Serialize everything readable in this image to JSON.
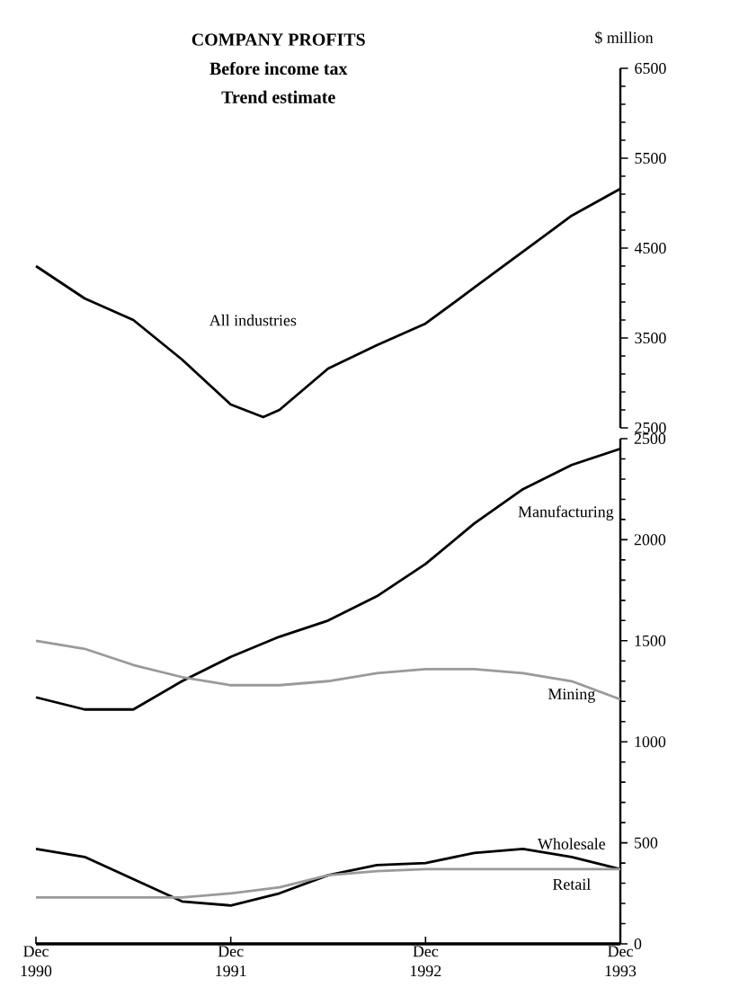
{
  "chart_data": [
    {
      "type": "line",
      "title": "COMPANY PROFITS",
      "subtitle": "Before income tax",
      "annotations": [
        "Trend estimate"
      ],
      "ylabel": "$ million",
      "x": [
        "1990-12",
        "1991-03",
        "1991-06",
        "1991-09",
        "1991-12",
        "1992-02",
        "1992-03",
        "1992-06",
        "1992-09",
        "1992-12",
        "1993-03",
        "1993-06",
        "1993-09",
        "1993-12"
      ],
      "series": [
        {
          "name": "All industries",
          "color": "#000000",
          "values": [
            4300,
            3940,
            3700,
            3260,
            2760,
            2620,
            2700,
            3160,
            3420,
            3660,
            4060,
            4460,
            4860,
            5160
          ]
        }
      ],
      "xlim": [
        "1990-12",
        "1993-12"
      ],
      "ylim": [
        2500,
        6500
      ],
      "yticks": [
        2500,
        3500,
        4500,
        5500,
        6500
      ],
      "tick_labels": "y",
      "grid": false,
      "legend": false
    },
    {
      "type": "line",
      "x": [
        "1990-12",
        "1991-03",
        "1991-06",
        "1991-09",
        "1991-12",
        "1992-03",
        "1992-06",
        "1992-09",
        "1992-12",
        "1993-03",
        "1993-06",
        "1993-09",
        "1993-12"
      ],
      "series": [
        {
          "name": "Manufacturing",
          "color": "#000000",
          "values": [
            1220,
            1160,
            1160,
            1300,
            1420,
            1520,
            1600,
            1720,
            1880,
            2080,
            2250,
            2370,
            2450
          ]
        },
        {
          "name": "Mining",
          "color": "#9a9a9a",
          "values": [
            1500,
            1460,
            1380,
            1320,
            1280,
            1280,
            1300,
            1340,
            1360,
            1360,
            1340,
            1300,
            1210
          ]
        },
        {
          "name": "Wholesale",
          "color": "#000000",
          "values": [
            470,
            430,
            320,
            210,
            190,
            250,
            340,
            390,
            400,
            450,
            470,
            430,
            370
          ]
        },
        {
          "name": "Retail",
          "color": "#9a9a9a",
          "values": [
            230,
            230,
            230,
            230,
            250,
            280,
            340,
            360,
            370,
            370,
            370,
            370,
            370
          ]
        }
      ],
      "xlim": [
        "1990-12",
        "1993-12"
      ],
      "xticks": [
        {
          "value": "1990-12",
          "label": "Dec 1990"
        },
        {
          "value": "1991-12",
          "label": "Dec 1991"
        },
        {
          "value": "1992-12",
          "label": "Dec 1992"
        },
        {
          "value": "1993-12",
          "label": "Dec 1993"
        }
      ],
      "ylim": [
        0,
        2500
      ],
      "yticks": [
        0,
        500,
        1000,
        1500,
        2000,
        2500
      ],
      "grid": false,
      "legend": false
    }
  ]
}
